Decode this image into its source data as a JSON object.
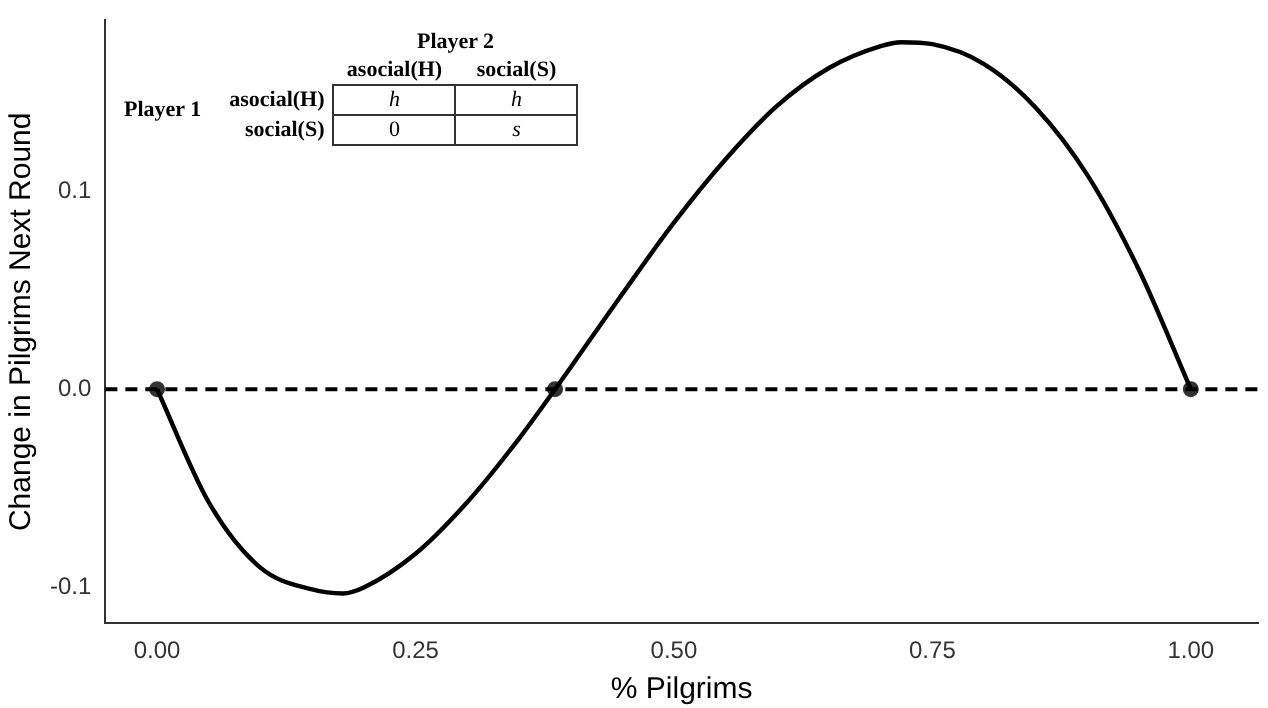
{
  "chart_data": {
    "type": "line",
    "xlabel": "% Pilgrims",
    "ylabel": "Change in Pilgrims Next Round",
    "xlim": [
      -0.05,
      1.065
    ],
    "ylim": [
      -0.118,
      0.186
    ],
    "xticks": [
      {
        "value": 0,
        "label": "0.00"
      },
      {
        "value": 0.25,
        "label": "0.25"
      },
      {
        "value": 0.5,
        "label": "0.50"
      },
      {
        "value": 0.75,
        "label": "0.75"
      },
      {
        "value": 1,
        "label": "1.00"
      }
    ],
    "yticks": [
      -0.1,
      {
        "value": 0,
        "label": "0.0"
      },
      0.1
    ],
    "grid": false,
    "legend": false,
    "marker": "none",
    "line_style": "solid",
    "series": [
      {
        "color": "#000000",
        "x": [
          0,
          0.05,
          0.1,
          0.15,
          0.18,
          0.2,
          0.25,
          0.3,
          0.35,
          0.385,
          0.4,
          0.45,
          0.5,
          0.55,
          0.6,
          0.65,
          0.7,
          0.72,
          0.75,
          0.8,
          0.85,
          0.9,
          0.95,
          1
        ],
        "values": [
          0,
          -0.057,
          -0.09,
          -0.101,
          -0.103,
          -0.1,
          -0.083,
          -0.057,
          -0.025,
          0,
          0.011,
          0.048,
          0.084,
          0.116,
          0.143,
          0.162,
          0.173,
          0.175,
          0.174,
          0.164,
          0.142,
          0.108,
          0.06,
          0
        ]
      },
      {
        "type": "scatter",
        "color": "#333333",
        "marker": "circle",
        "x": [
          0,
          0.385,
          1
        ],
        "values": [
          0,
          0,
          0
        ]
      }
    ],
    "ref_lines": [
      {
        "axis": "y",
        "value": 0,
        "color": "#000000",
        "line_style": "dashed"
      }
    ],
    "annotations": [
      "Player 2",
      "Player 1",
      "asocial(H)",
      "social(S)",
      "asocial(H)",
      "social(S)",
      "h",
      "h",
      "0",
      "s"
    ]
  }
}
